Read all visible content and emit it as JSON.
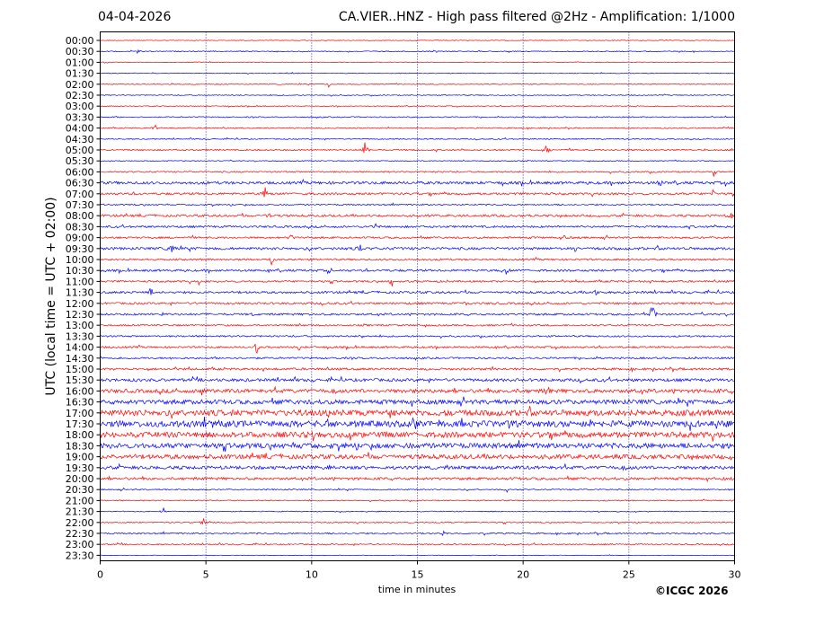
{
  "header": {
    "date": "04-04-2026",
    "title": "CA.VIER..HNZ - High pass filtered @2Hz - Amplification: 1/1000"
  },
  "footer": {
    "copyright": "©ICGC 2026"
  },
  "colors": {
    "red": "#ff0000",
    "blue": "#0000ff",
    "grid": "#000080"
  },
  "chart_data": {
    "type": "line",
    "title": "CA.VIER..HNZ - High pass filtered @2Hz - Amplification: 1/1000",
    "xlabel": "time in minutes",
    "ylabel": "UTC (local time = UTC + 02:00)",
    "xlim": [
      0,
      30
    ],
    "xticks": [
      "0",
      "5",
      "10",
      "15",
      "20",
      "25",
      "30"
    ],
    "vertical_grid_minutes": [
      5,
      10,
      15,
      20,
      25
    ],
    "grid": true,
    "row_labels": [
      "00:00",
      "00:30",
      "01:00",
      "01:30",
      "02:00",
      "02:30",
      "03:00",
      "03:30",
      "04:00",
      "04:30",
      "05:00",
      "05:30",
      "06:00",
      "06:30",
      "07:00",
      "07:30",
      "08:00",
      "08:30",
      "09:00",
      "09:30",
      "10:00",
      "10:30",
      "11:00",
      "11:30",
      "12:00",
      "12:30",
      "13:00",
      "13:30",
      "14:00",
      "14:30",
      "15:00",
      "15:30",
      "16:00",
      "16:30",
      "17:00",
      "17:30",
      "18:00",
      "18:30",
      "19:00",
      "19:30",
      "20:00",
      "20:30",
      "21:00",
      "21:30",
      "22:00",
      "22:30",
      "23:00",
      "23:30"
    ],
    "row_colors": [
      "red",
      "blue"
    ],
    "noise_level": [
      0.4,
      0.5,
      0.4,
      0.4,
      0.5,
      0.5,
      0.5,
      0.6,
      0.6,
      0.6,
      0.8,
      0.5,
      0.8,
      1.5,
      1.2,
      0.8,
      1.2,
      1.1,
      1.0,
      1.4,
      1.0,
      1.2,
      1.0,
      1.2,
      1.1,
      1.1,
      0.9,
      0.9,
      1.0,
      1.0,
      1.2,
      1.6,
      2.0,
      2.4,
      3.2,
      3.4,
      3.0,
      2.8,
      2.4,
      1.8,
      1.4,
      0.7,
      0.6,
      0.5,
      0.7,
      0.8,
      0.7,
      0.3
    ],
    "events": [
      {
        "row": 1,
        "minute": 1.8,
        "amp": 3
      },
      {
        "row": 1,
        "minute": 15.9,
        "amp": 2
      },
      {
        "row": 4,
        "minute": 10.8,
        "amp": 3
      },
      {
        "row": 8,
        "minute": 2.6,
        "amp": 5
      },
      {
        "row": 10,
        "minute": 12.5,
        "amp": 12
      },
      {
        "row": 10,
        "minute": 21.1,
        "amp": 6
      },
      {
        "row": 12,
        "minute": 29.0,
        "amp": 6
      },
      {
        "row": 13,
        "minute": 26.5,
        "amp": 5
      },
      {
        "row": 14,
        "minute": 7.8,
        "amp": 10
      },
      {
        "row": 14,
        "minute": 29.0,
        "amp": 5
      },
      {
        "row": 16,
        "minute": 8.0,
        "amp": 5
      },
      {
        "row": 16,
        "minute": 29.8,
        "amp": 5
      },
      {
        "row": 17,
        "minute": 13.0,
        "amp": 5
      },
      {
        "row": 18,
        "minute": 9.0,
        "amp": 8
      },
      {
        "row": 18,
        "minute": 22.0,
        "amp": 5
      },
      {
        "row": 19,
        "minute": 3.4,
        "amp": 6
      },
      {
        "row": 19,
        "minute": 12.3,
        "amp": 5
      },
      {
        "row": 19,
        "minute": 22.5,
        "amp": 5
      },
      {
        "row": 20,
        "minute": 8.1,
        "amp": 6
      },
      {
        "row": 21,
        "minute": 10.9,
        "amp": 4
      },
      {
        "row": 21,
        "minute": 19.2,
        "amp": 6
      },
      {
        "row": 22,
        "minute": 4.7,
        "amp": 4
      },
      {
        "row": 22,
        "minute": 13.8,
        "amp": 5
      },
      {
        "row": 23,
        "minute": 2.4,
        "amp": 8
      },
      {
        "row": 23,
        "minute": 23.4,
        "amp": 4
      },
      {
        "row": 24,
        "minute": 17.2,
        "amp": 5
      },
      {
        "row": 25,
        "minute": 2.9,
        "amp": 7
      },
      {
        "row": 25,
        "minute": 7.2,
        "amp": 4
      },
      {
        "row": 25,
        "minute": 26.1,
        "amp": 14
      },
      {
        "row": 27,
        "minute": 12.4,
        "amp": 4
      },
      {
        "row": 28,
        "minute": 7.4,
        "amp": 8
      },
      {
        "row": 28,
        "minute": 9.4,
        "amp": 6
      },
      {
        "row": 32,
        "minute": 4.8,
        "amp": 8
      },
      {
        "row": 32,
        "minute": 21.2,
        "amp": 7
      },
      {
        "row": 41,
        "minute": 19.2,
        "amp": 4
      },
      {
        "row": 43,
        "minute": 3.0,
        "amp": 4
      },
      {
        "row": 44,
        "minute": 4.9,
        "amp": 6
      },
      {
        "row": 45,
        "minute": 16.2,
        "amp": 4
      }
    ]
  }
}
